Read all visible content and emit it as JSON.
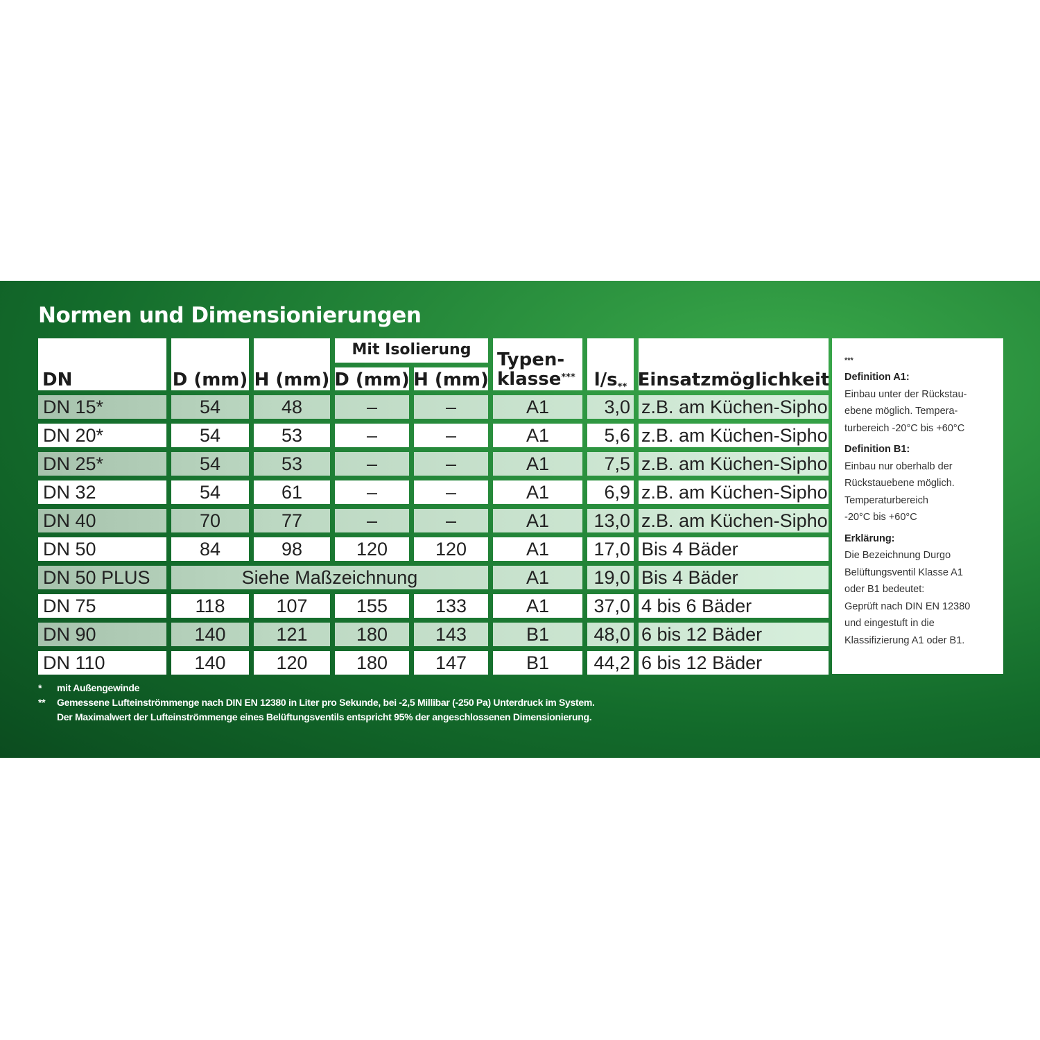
{
  "title": "Normen und Dimensionierungen",
  "colors": {
    "banner": "#1f7d35",
    "shade": "#bcd8c2",
    "cell": "#ffffff"
  },
  "table": {
    "headers": {
      "dn": "DN",
      "d": "D (mm)",
      "h": "H (mm)",
      "group": "Mit Isolierung",
      "iso_d": "D (mm)",
      "iso_h": "H (mm)",
      "typ_line1": "Typen-",
      "typ_line2": "klasse",
      "typ_mark": "***",
      "ls": "l/s",
      "ls_mark": "**",
      "use": "Einsatzmöglichkeit"
    },
    "rows": [
      {
        "dn": "DN 15*",
        "d": "54",
        "h": "48",
        "iso_d": "–",
        "iso_h": "–",
        "typ": "A1",
        "ls": "3,0",
        "use": "z.B. am Küchen-Siphon"
      },
      {
        "dn": "DN 20*",
        "d": "54",
        "h": "53",
        "iso_d": "–",
        "iso_h": "–",
        "typ": "A1",
        "ls": "5,6",
        "use": "z.B. am Küchen-Siphon"
      },
      {
        "dn": "DN 25*",
        "d": "54",
        "h": "53",
        "iso_d": "–",
        "iso_h": "–",
        "typ": "A1",
        "ls": "7,5",
        "use": "z.B. am Küchen-Siphon"
      },
      {
        "dn": "DN 32",
        "d": "54",
        "h": "61",
        "iso_d": "–",
        "iso_h": "–",
        "typ": "A1",
        "ls": "6,9",
        "use": "z.B. am Küchen-Siphon"
      },
      {
        "dn": "DN 40",
        "d": "70",
        "h": "77",
        "iso_d": "–",
        "iso_h": "–",
        "typ": "A1",
        "ls": "13,0",
        "use": "z.B. am Küchen-Siphon"
      },
      {
        "dn": "DN 50",
        "d": "84",
        "h": "98",
        "iso_d": "120",
        "iso_h": "120",
        "typ": "A1",
        "ls": "17,0",
        "use": "Bis 4 Bäder"
      },
      {
        "dn": "DN 50 PLUS",
        "merged": "Siehe Maßzeichnung",
        "typ": "A1",
        "ls": "19,0",
        "use": "Bis 4 Bäder"
      },
      {
        "dn": "DN 75",
        "d": "118",
        "h": "107",
        "iso_d": "155",
        "iso_h": "133",
        "typ": "A1",
        "ls": "37,0",
        "use": "4 bis 6 Bäder"
      },
      {
        "dn": "DN 90",
        "d": "140",
        "h": "121",
        "iso_d": "180",
        "iso_h": "143",
        "typ": "B1",
        "ls": "48,0",
        "use": "6 bis 12 Bäder"
      },
      {
        "dn": "DN 110",
        "d": "140",
        "h": "120",
        "iso_d": "180",
        "iso_h": "147",
        "typ": "B1",
        "ls": "44,2",
        "use": "6 bis 12 Bäder"
      }
    ]
  },
  "panel": {
    "mark": "***",
    "a1_title": "Definition A1:",
    "a1_lines": [
      "Einbau unter der Rückstau-",
      "ebene möglich. Tempera-",
      "turbereich -20°C bis +60°C"
    ],
    "b1_title": "Definition B1:",
    "b1_lines": [
      "Einbau nur oberhalb der",
      "Rückstauebene möglich.",
      "Temperaturbereich",
      " -20°C bis +60°C"
    ],
    "expl_title": "Erklärung:",
    "expl_lines": [
      "Die Bezeichnung Durgo",
      "Belüftungsventil Klasse A1",
      "oder B1 bedeutet:",
      "Geprüft nach DIN EN 12380",
      "und eingestuft in die",
      "Klassifizierung  A1 oder B1."
    ]
  },
  "footnotes": [
    {
      "mark": "*",
      "text": "mit Außengewinde"
    },
    {
      "mark": "**",
      "text": "Gemessene Lufteinströmmenge nach DIN EN 12380 in Liter pro Sekunde, bei -2,5 Millibar (-250 Pa) Unterdruck im System."
    },
    {
      "mark": "",
      "text": "Der Maximalwert der  Lufteinströmmenge eines Belüftungsventils entspricht 95% der angeschlossenen Dimensionierung."
    }
  ]
}
